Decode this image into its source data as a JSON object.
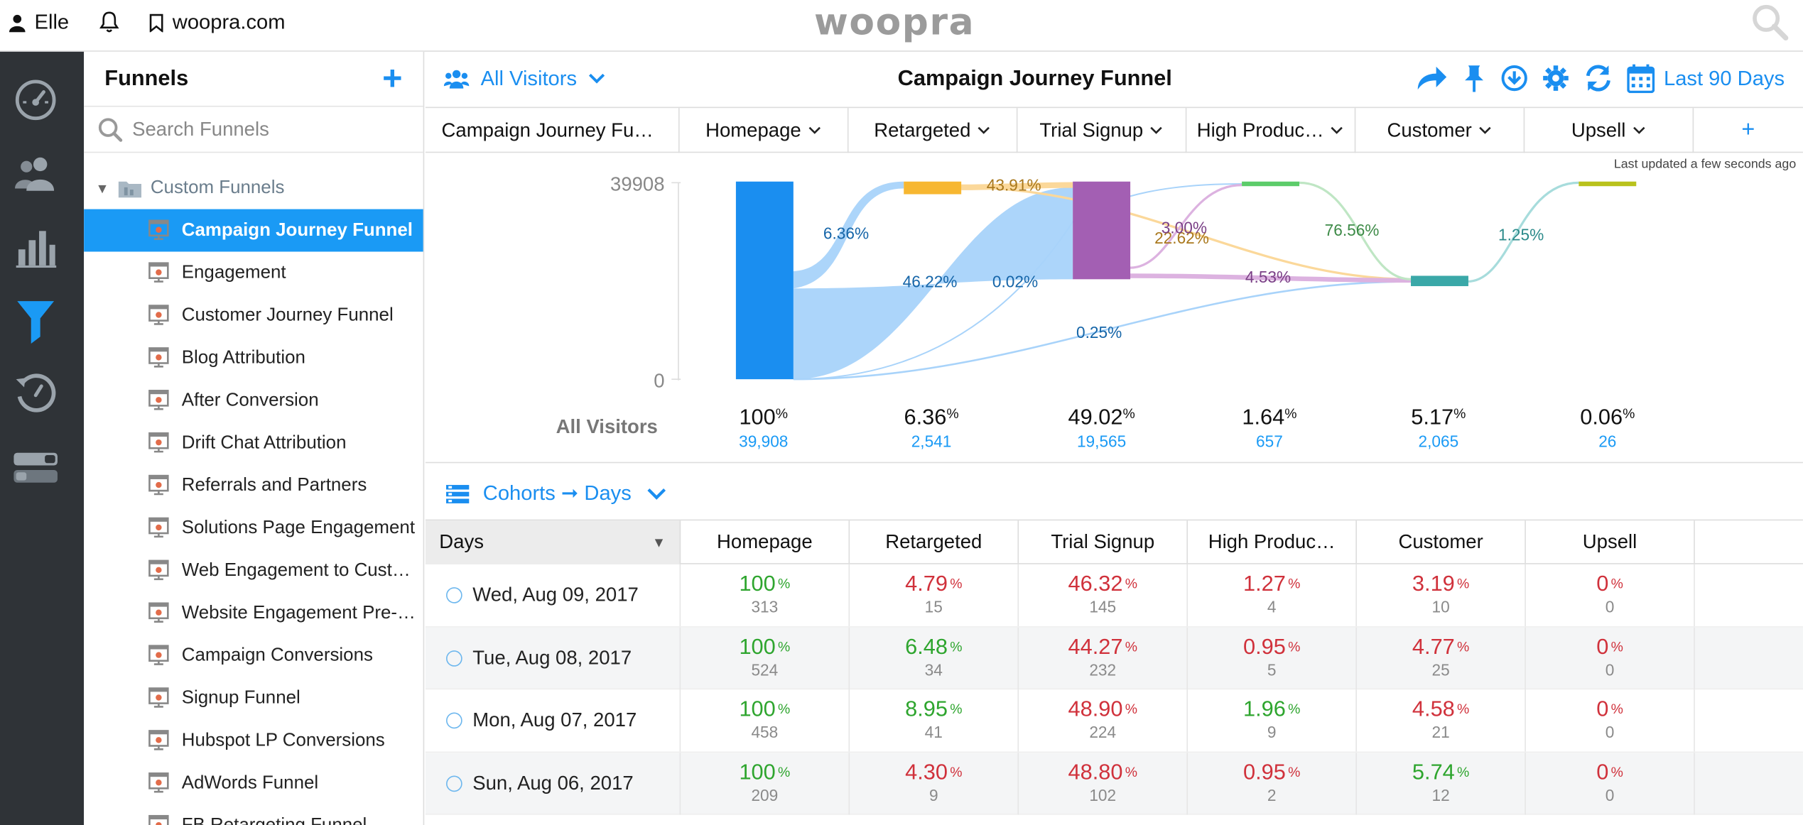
{
  "topbar": {
    "user": "Elle",
    "site": "woopra.com",
    "logo": "woopra"
  },
  "rail": {
    "icons": [
      "dashboard-icon",
      "people-icon",
      "reports-icon",
      "funnel-icon",
      "retention-icon",
      "toggle-icon"
    ]
  },
  "sidebar": {
    "title": "Funnels",
    "add_label": "+",
    "search_placeholder": "Search Funnels",
    "folder": "Custom Funnels",
    "items": [
      "Campaign Journey Funnel",
      "Engagement",
      "Customer Journey Funnel",
      "Blog Attribution",
      "After Conversion",
      "Drift Chat Attribution",
      "Referrals and Partners",
      "Solutions Page Engagement",
      "Web Engagement to Cust…",
      "Website Engagement Pre-…",
      "Campaign Conversions",
      "Signup Funnel",
      "Hubspot LP Conversions",
      "AdWords Funnel",
      "FB Retargeting Funnel"
    ],
    "active_index": 0
  },
  "header": {
    "segment": "All Visitors",
    "title": "Campaign Journey Funnel",
    "range": "Last 90 Days"
  },
  "steps": {
    "first": "Campaign Journey Fu…",
    "items": [
      "Homepage",
      "Retargeted",
      "Trial Signup",
      "High Produc…",
      "Customer",
      "Upsell"
    ],
    "add": "+"
  },
  "chart_data": {
    "type": "sankey",
    "updated": "Last updated a few seconds ago",
    "y_max_label": "39908",
    "y_min_label": "0",
    "row_label": "All Visitors",
    "stages": [
      {
        "name": "Homepage",
        "pct": "100",
        "count": "39,908",
        "color": "#1a8ef0"
      },
      {
        "name": "Retargeted",
        "pct": "6.36",
        "count": "2,541",
        "color": "#f7b731"
      },
      {
        "name": "Trial Signup",
        "pct": "49.02",
        "count": "19,565",
        "color": "#a35fb3"
      },
      {
        "name": "High Produc…",
        "pct": "1.64",
        "count": "657",
        "color": "#5ccc6a"
      },
      {
        "name": "Customer",
        "pct": "5.17",
        "count": "2,065",
        "color": "#3aa8a8"
      },
      {
        "name": "Upsell",
        "pct": "0.06",
        "count": "26",
        "color": "#b9c21c"
      }
    ],
    "flow_labels": [
      {
        "text": "6.36%",
        "color": "#1565a8"
      },
      {
        "text": "46.22%",
        "color": "#1565a8"
      },
      {
        "text": "0.02%",
        "color": "#1565a8"
      },
      {
        "text": "0.25%",
        "color": "#1565a8"
      },
      {
        "text": "43.91%",
        "color": "#a9781d"
      },
      {
        "text": "22.62%",
        "color": "#a9781d"
      },
      {
        "text": "3.00%",
        "color": "#7a3f86"
      },
      {
        "text": "4.53%",
        "color": "#7a3f86"
      },
      {
        "text": "76.56%",
        "color": "#3d8a47"
      },
      {
        "text": "1.25%",
        "color": "#2b8a8a"
      }
    ]
  },
  "cohort": {
    "label": "Cohorts ➞ Days"
  },
  "table": {
    "columns": [
      "Days",
      "Homepage",
      "Retargeted",
      "Trial Signup",
      "High Produc…",
      "Customer",
      "Upsell"
    ],
    "rows": [
      {
        "day": "Wed, Aug 09, 2017",
        "cells": [
          [
            "100",
            "313",
            "good"
          ],
          [
            "4.79",
            "15",
            "bad"
          ],
          [
            "46.32",
            "145",
            "bad"
          ],
          [
            "1.27",
            "4",
            "bad"
          ],
          [
            "3.19",
            "10",
            "bad"
          ],
          [
            "0",
            "0",
            "bad"
          ]
        ]
      },
      {
        "day": "Tue, Aug 08, 2017",
        "cells": [
          [
            "100",
            "524",
            "good"
          ],
          [
            "6.48",
            "34",
            "good"
          ],
          [
            "44.27",
            "232",
            "bad"
          ],
          [
            "0.95",
            "5",
            "bad"
          ],
          [
            "4.77",
            "25",
            "bad"
          ],
          [
            "0",
            "0",
            "bad"
          ]
        ]
      },
      {
        "day": "Mon, Aug 07, 2017",
        "cells": [
          [
            "100",
            "458",
            "good"
          ],
          [
            "8.95",
            "41",
            "good"
          ],
          [
            "48.90",
            "224",
            "bad"
          ],
          [
            "1.96",
            "9",
            "good"
          ],
          [
            "4.58",
            "21",
            "bad"
          ],
          [
            "0",
            "0",
            "bad"
          ]
        ]
      },
      {
        "day": "Sun, Aug 06, 2017",
        "cells": [
          [
            "100",
            "209",
            "good"
          ],
          [
            "4.30",
            "9",
            "bad"
          ],
          [
            "48.80",
            "102",
            "bad"
          ],
          [
            "0.95",
            "2",
            "bad"
          ],
          [
            "5.74",
            "12",
            "good"
          ],
          [
            "0",
            "0",
            "bad"
          ]
        ]
      }
    ]
  }
}
